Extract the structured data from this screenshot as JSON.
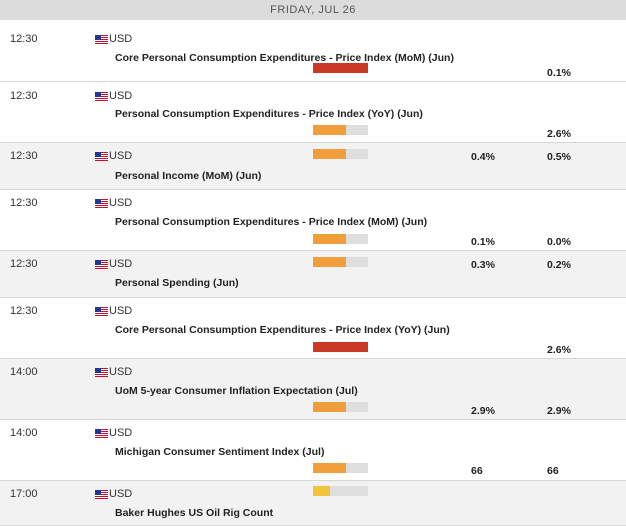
{
  "header": {
    "date": "FRIDAY, JUL 26"
  },
  "colors": {
    "high": "#c83a26",
    "medium": "#ef9e3a",
    "low": "#f1c43c",
    "empty": "#dedede"
  },
  "events": [
    {
      "time": "12:30",
      "currency": "USD",
      "flag_icon": "us-flag-icon",
      "title": "Core Personal Consumption Expenditures - Price Index (MoM) (Jun)",
      "impact": "high",
      "previous": "",
      "consensus": "0.1%"
    },
    {
      "time": "12:30",
      "currency": "USD",
      "flag_icon": "us-flag-icon",
      "title": "Personal Consumption Expenditures - Price Index (YoY) (Jun)",
      "impact": "medium",
      "previous": "",
      "consensus": "2.6%"
    },
    {
      "time": "12:30",
      "currency": "USD",
      "flag_icon": "us-flag-icon",
      "title": "Personal Income (MoM) (Jun)",
      "impact": "medium",
      "previous": "0.4%",
      "consensus": "0.5%"
    },
    {
      "time": "12:30",
      "currency": "USD",
      "flag_icon": "us-flag-icon",
      "title": "Personal Consumption Expenditures - Price Index (MoM) (Jun)",
      "impact": "medium",
      "previous": "0.1%",
      "consensus": "0.0%"
    },
    {
      "time": "12:30",
      "currency": "USD",
      "flag_icon": "us-flag-icon",
      "title": "Personal Spending (Jun)",
      "impact": "medium",
      "previous": "0.3%",
      "consensus": "0.2%"
    },
    {
      "time": "12:30",
      "currency": "USD",
      "flag_icon": "us-flag-icon",
      "title": "Core Personal Consumption Expenditures - Price Index (YoY) (Jun)",
      "impact": "high",
      "previous": "",
      "consensus": "2.6%"
    },
    {
      "time": "14:00",
      "currency": "USD",
      "flag_icon": "us-flag-icon",
      "title": "UoM 5-year Consumer Inflation Expectation (Jul)",
      "impact": "medium",
      "previous": "2.9%",
      "consensus": "2.9%"
    },
    {
      "time": "14:00",
      "currency": "USD",
      "flag_icon": "us-flag-icon",
      "title": "Michigan Consumer Sentiment Index (Jul)",
      "impact": "medium",
      "previous": "66",
      "consensus": "66"
    },
    {
      "time": "17:00",
      "currency": "USD",
      "flag_icon": "us-flag-icon",
      "title": "Baker Hughes US Oil Rig Count",
      "impact": "low",
      "previous": "",
      "consensus": ""
    }
  ]
}
